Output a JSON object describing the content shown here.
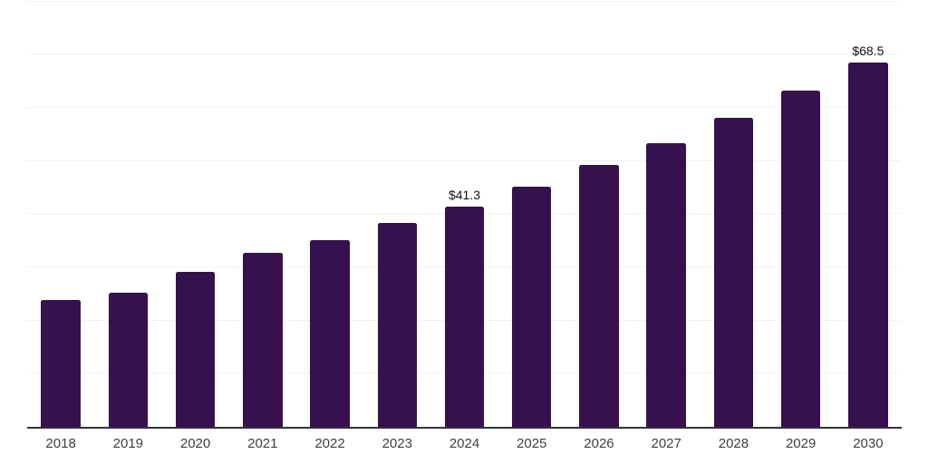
{
  "chart_data": {
    "type": "bar",
    "title": "",
    "xlabel": "",
    "ylabel": "",
    "categories": [
      "2018",
      "2019",
      "2020",
      "2021",
      "2022",
      "2023",
      "2024",
      "2025",
      "2026",
      "2027",
      "2028",
      "2029",
      "2030"
    ],
    "values": [
      23.8,
      25.2,
      29.1,
      32.6,
      35.0,
      38.2,
      41.3,
      45.0,
      49.2,
      53.2,
      58.0,
      63.1,
      68.5
    ],
    "value_labels": [
      {
        "category": "2024",
        "text": "$41.3"
      },
      {
        "category": "2030",
        "text": "$68.5"
      }
    ],
    "ylim": [
      0,
      80
    ],
    "gridline_step": 10,
    "grid": true,
    "y_tick_labels_shown": false,
    "legend_position": "none",
    "colors": {
      "bar": "#36114D",
      "axis": "#333333",
      "gridline": "#f2f2f5",
      "tick_label": "#3f3f3f",
      "value_label": "#111111",
      "background": "#ffffff"
    }
  }
}
